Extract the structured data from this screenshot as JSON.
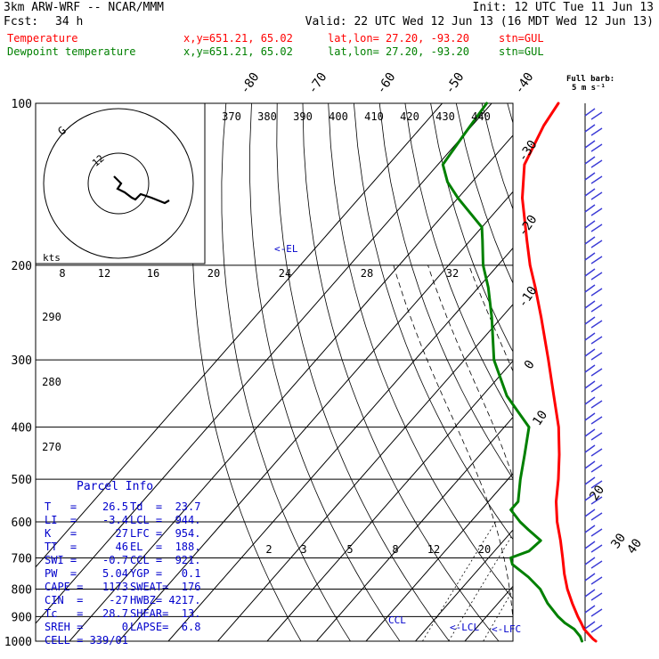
{
  "header": {
    "model": "3km ARW-WRF -- NCAR/MMM",
    "init": "Init: 12 UTC Tue 11 Jun 13",
    "fcst_label": "Fcst:",
    "fcst_value": "34 h",
    "valid": "Valid: 22 UTC Wed 12 Jun 13 (16 MDT Wed 12 Jun 13)"
  },
  "series_labels": [
    {
      "name": "Temperature",
      "xy": "x,y=651.21, 65.02",
      "latlon": "lat,lon= 27.20, -93.20",
      "stn": "stn=GUL",
      "color": "#ff0000"
    },
    {
      "name": "Dewpoint temperature",
      "xy": "x,y=651.21, 65.02",
      "latlon": "lat,lon= 27.20, -93.20",
      "stn": "stn=GUL",
      "color": "#008000"
    }
  ],
  "barb_legend": {
    "line1": "Full barb:",
    "line2": "5 m s⁻¹"
  },
  "hodograph": {
    "units": "kts",
    "ring_labels": [
      "12",
      "G"
    ]
  },
  "markers": {
    "el": "<-EL",
    "ccl": "CCL",
    "lcl": "<-LCL",
    "lfc": "<-LFC"
  },
  "parcel_info": {
    "title": "Parcel Info",
    "rows": [
      [
        "T   =    26.5",
        "Td  =  23.7"
      ],
      [
        "LI  =    -3.4",
        "LCL =  944."
      ],
      [
        "K   =      27",
        "LFC =  954."
      ],
      [
        "TT  =      46",
        "EL  =  188."
      ],
      [
        "SWI =    -0.7",
        "CCL =  921."
      ],
      [
        "PW  =    5.04",
        "YGP =   0.1"
      ],
      [
        "CAPE =   1173",
        "SWEAT=  176"
      ],
      [
        "CIN  =    -27",
        "HWBZ= 4217."
      ],
      [
        "Tc   =   28.7",
        "SHEAR=  13."
      ],
      [
        "SREH =      0",
        "LAPSE=  6.8"
      ],
      [
        "CELL = 339/01",
        ""
      ]
    ]
  },
  "chart_data": {
    "type": "line",
    "title": "",
    "diagram": "skew-T log-p",
    "y_axis": "pressure (hPa), log scale",
    "pressure_ticks": [
      100,
      200,
      300,
      400,
      500,
      600,
      700,
      800,
      900,
      1000
    ],
    "pressure_tick_labels": [
      "100",
      "200",
      "300",
      "400",
      "500",
      "600",
      "700",
      "800",
      "900",
      "1000"
    ],
    "ylim": [
      100,
      1000
    ],
    "isotherm_labels": [
      "-80",
      "-70",
      "-60",
      "-50",
      "-40",
      "-30",
      "-20",
      "-10",
      "0",
      "10",
      "20",
      "30",
      "40"
    ],
    "theta_labels": [
      "370",
      "380",
      "390",
      "400",
      "410",
      "420",
      "430",
      "440"
    ],
    "hodograph_speed_labels": [
      "8",
      "12",
      "16",
      "20",
      "24",
      "28",
      "32"
    ],
    "theta_side_labels": [
      "290",
      "280",
      "270"
    ],
    "mixing_ratio_labels": [
      "2",
      "3",
      "5",
      "8",
      "12",
      "20"
    ],
    "series": [
      {
        "name": "Temperature",
        "color": "#ff0000",
        "units": "°C",
        "points": [
          [
            1000,
            26.5
          ],
          [
            990,
            25.5
          ],
          [
            975,
            24.2
          ],
          [
            950,
            22.0
          ],
          [
            925,
            20.3
          ],
          [
            900,
            18.5
          ],
          [
            850,
            15.0
          ],
          [
            800,
            11.5
          ],
          [
            750,
            8.2
          ],
          [
            700,
            5.0
          ],
          [
            650,
            1.5
          ],
          [
            600,
            -2.5
          ],
          [
            550,
            -6.3
          ],
          [
            500,
            -9.8
          ],
          [
            450,
            -14.0
          ],
          [
            400,
            -19.0
          ],
          [
            350,
            -25.5
          ],
          [
            300,
            -33.0
          ],
          [
            250,
            -42.0
          ],
          [
            220,
            -48.5
          ],
          [
            200,
            -53.5
          ],
          [
            180,
            -58.5
          ],
          [
            150,
            -67.0
          ],
          [
            130,
            -72.5
          ],
          [
            110,
            -75.5
          ],
          [
            100,
            -76.5
          ]
        ]
      },
      {
        "name": "Dewpoint temperature",
        "color": "#008000",
        "units": "°C",
        "points": [
          [
            1000,
            23.7
          ],
          [
            980,
            22.5
          ],
          [
            950,
            20.0
          ],
          [
            925,
            17.0
          ],
          [
            900,
            14.5
          ],
          [
            850,
            10.0
          ],
          [
            800,
            6.0
          ],
          [
            760,
            1.5
          ],
          [
            720,
            -4.0
          ],
          [
            700,
            -5.5
          ],
          [
            680,
            -3.0
          ],
          [
            650,
            -2.5
          ],
          [
            620,
            -7.0
          ],
          [
            600,
            -10.0
          ],
          [
            570,
            -14.0
          ],
          [
            550,
            -14.0
          ],
          [
            500,
            -17.5
          ],
          [
            450,
            -21.0
          ],
          [
            400,
            -25.0
          ],
          [
            350,
            -35.0
          ],
          [
            300,
            -44.0
          ],
          [
            250,
            -52.0
          ],
          [
            220,
            -58.0
          ],
          [
            200,
            -63.0
          ],
          [
            180,
            -67.5
          ],
          [
            170,
            -70.0
          ],
          [
            150,
            -80.0
          ],
          [
            140,
            -85.0
          ],
          [
            130,
            -89.0
          ],
          [
            115,
            -90.0
          ],
          [
            100,
            -91.0
          ]
        ]
      }
    ],
    "hodograph_points": [
      [
        128,
        198
      ],
      [
        132,
        202
      ],
      [
        136,
        206
      ],
      [
        132,
        212
      ],
      [
        140,
        216
      ],
      [
        148,
        222
      ],
      [
        152,
        224
      ],
      [
        158,
        218
      ],
      [
        170,
        222
      ],
      [
        185,
        228
      ],
      [
        190,
        225
      ]
    ]
  }
}
